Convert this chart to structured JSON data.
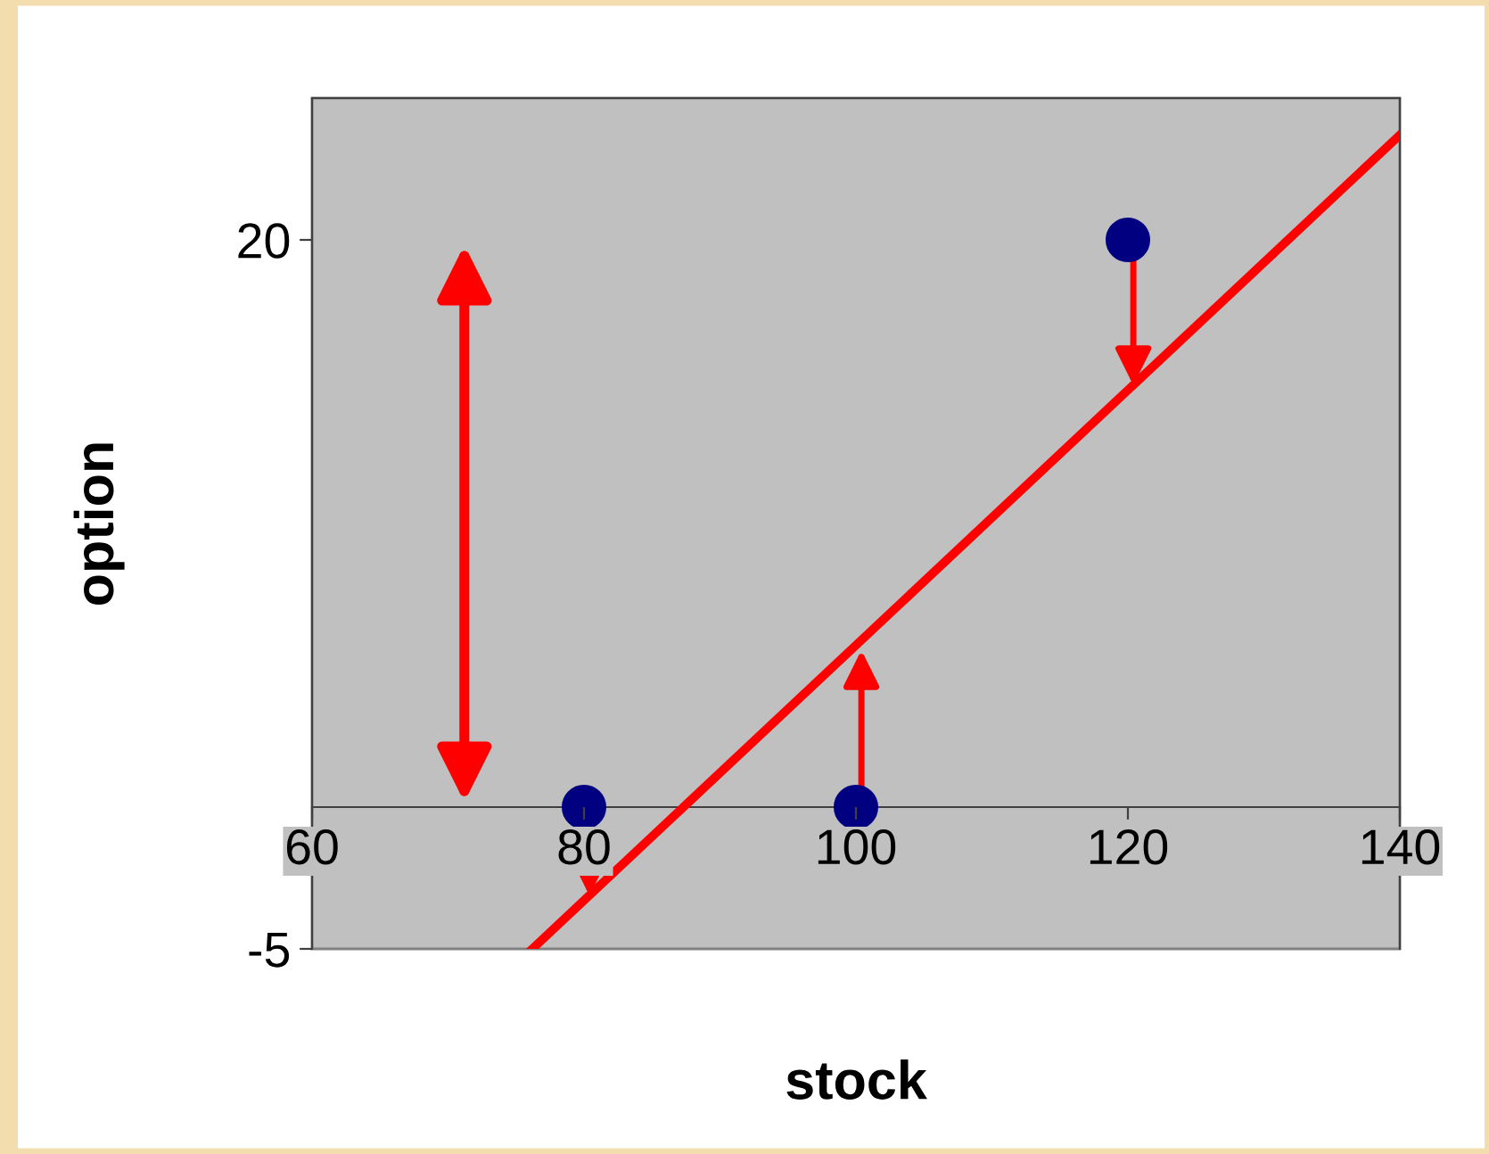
{
  "chart_data": {
    "type": "scatter",
    "xlabel": "stock",
    "ylabel": "option",
    "x": [
      80,
      100,
      120
    ],
    "series": [
      {
        "color": "#000080",
        "values": [
          0,
          0,
          20
        ]
      },
      {
        "type": "line",
        "marker": "none",
        "color": "#ff0000",
        "x": [
          76.2,
          140
        ],
        "values": [
          -5,
          23.7
        ]
      }
    ],
    "xlim": [
      60,
      140
    ],
    "ylim": [
      -5,
      25
    ],
    "xticks": [
      60,
      80,
      100,
      120,
      140
    ],
    "yticks": [
      -5,
      20
    ],
    "marker": "circle",
    "grid": false,
    "legend": false
  }
}
